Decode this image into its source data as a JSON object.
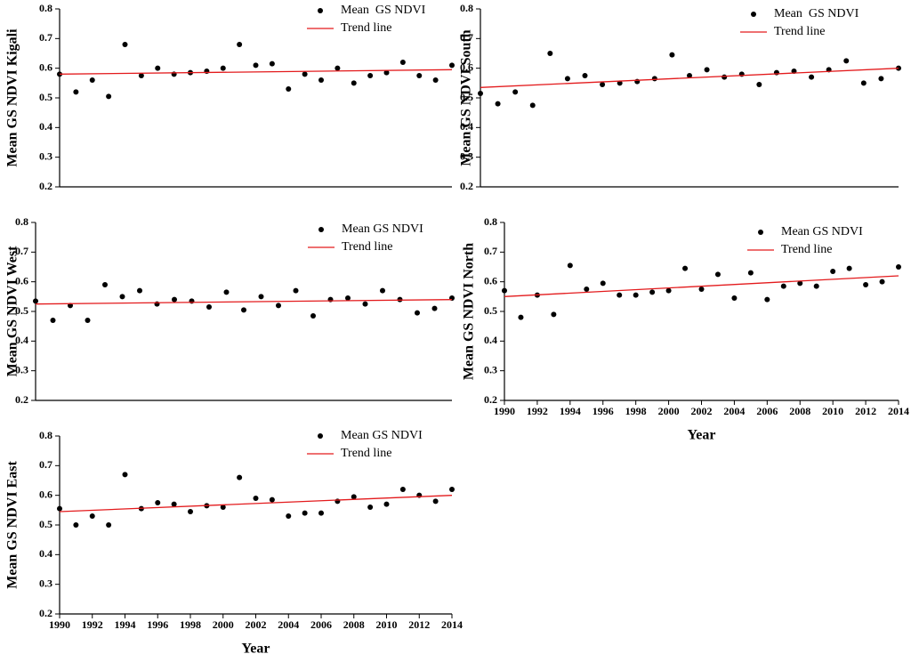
{
  "chart_data": [
    {
      "type": "scatter",
      "y_label": "Mean GS NDVI Kigali",
      "x": [
        1990,
        1991,
        1992,
        1993,
        1994,
        1995,
        1996,
        1997,
        1998,
        1999,
        2000,
        2001,
        2002,
        2003,
        2004,
        2005,
        2006,
        2007,
        2008,
        2009,
        2010,
        2011,
        2012,
        2013,
        2014
      ],
      "xlim": [
        1990,
        2014
      ],
      "ylim": [
        0.2,
        0.8
      ],
      "yticks": [
        0.2,
        0.3,
        0.4,
        0.5,
        0.6,
        0.7,
        0.8
      ],
      "series": [
        {
          "name": "Mean  GS NDVI",
          "color": "#000000",
          "values": [
            0.58,
            0.52,
            0.56,
            0.505,
            0.68,
            0.575,
            0.6,
            0.58,
            0.585,
            0.59,
            0.6,
            0.68,
            0.61,
            0.615,
            0.53,
            0.58,
            0.56,
            0.6,
            0.55,
            0.575,
            0.585,
            0.62,
            0.575,
            0.56,
            0.61
          ]
        },
        {
          "name": "Trend line",
          "color": "#e31a1c",
          "x": [
            1990,
            2014
          ],
          "values": [
            0.58,
            0.595
          ]
        }
      ]
    },
    {
      "type": "scatter",
      "y_label": "Mean GS NDVI South",
      "x": [
        1990,
        1991,
        1992,
        1993,
        1994,
        1995,
        1996,
        1997,
        1998,
        1999,
        2000,
        2001,
        2002,
        2003,
        2004,
        2005,
        2006,
        2007,
        2008,
        2009,
        2010,
        2011,
        2012,
        2013,
        2014
      ],
      "xlim": [
        1990,
        2014
      ],
      "ylim": [
        0.2,
        0.8
      ],
      "yticks": [
        0.2,
        0.3,
        0.4,
        0.5,
        0.6,
        0.7,
        0.8
      ],
      "series": [
        {
          "name": "Mean  GS NDVI",
          "color": "#000000",
          "values": [
            0.515,
            0.48,
            0.52,
            0.475,
            0.65,
            0.565,
            0.575,
            0.545,
            0.55,
            0.555,
            0.565,
            0.645,
            0.575,
            0.595,
            0.57,
            0.58,
            0.545,
            0.585,
            0.59,
            0.57,
            0.595,
            0.625,
            0.55,
            0.565,
            0.6
          ]
        },
        {
          "name": "Trend line",
          "color": "#e31a1c",
          "x": [
            1990,
            2014
          ],
          "values": [
            0.535,
            0.6
          ]
        }
      ]
    },
    {
      "type": "scatter",
      "y_label": "Mean GS NDVI West",
      "x": [
        1990,
        1991,
        1992,
        1993,
        1994,
        1995,
        1996,
        1997,
        1998,
        1999,
        2000,
        2001,
        2002,
        2003,
        2004,
        2005,
        2006,
        2007,
        2008,
        2009,
        2010,
        2011,
        2012,
        2013,
        2014
      ],
      "xlim": [
        1990,
        2014
      ],
      "ylim": [
        0.2,
        0.8
      ],
      "yticks": [
        0.2,
        0.3,
        0.4,
        0.5,
        0.6,
        0.7,
        0.8
      ],
      "series": [
        {
          "name": "Mean GS NDVI",
          "color": "#000000",
          "values": [
            0.535,
            0.47,
            0.52,
            0.47,
            0.59,
            0.55,
            0.57,
            0.525,
            0.54,
            0.535,
            0.515,
            0.565,
            0.505,
            0.55,
            0.52,
            0.57,
            0.485,
            0.54,
            0.545,
            0.525,
            0.57,
            0.54,
            0.495,
            0.51,
            0.545
          ]
        },
        {
          "name": "Trend line",
          "color": "#e31a1c",
          "x": [
            1990,
            2014
          ],
          "values": [
            0.525,
            0.54
          ]
        }
      ]
    },
    {
      "type": "scatter",
      "y_label": "Mean GS NDVI North",
      "x_label": "Year",
      "x": [
        1990,
        1991,
        1992,
        1993,
        1994,
        1995,
        1996,
        1997,
        1998,
        1999,
        2000,
        2001,
        2002,
        2003,
        2004,
        2005,
        2006,
        2007,
        2008,
        2009,
        2010,
        2011,
        2012,
        2013,
        2014
      ],
      "xlim": [
        1990,
        2014
      ],
      "xticks": [
        1990,
        1992,
        1994,
        1996,
        1998,
        2000,
        2002,
        2004,
        2006,
        2008,
        2010,
        2012,
        2014
      ],
      "ylim": [
        0.2,
        0.8
      ],
      "yticks": [
        0.2,
        0.3,
        0.4,
        0.5,
        0.6,
        0.7,
        0.8
      ],
      "series": [
        {
          "name": "Mean GS NDVI",
          "color": "#000000",
          "values": [
            0.57,
            0.48,
            0.555,
            0.49,
            0.655,
            0.575,
            0.595,
            0.555,
            0.555,
            0.565,
            0.57,
            0.645,
            0.575,
            0.625,
            0.545,
            0.63,
            0.54,
            0.585,
            0.595,
            0.585,
            0.635,
            0.645,
            0.59,
            0.6,
            0.65
          ]
        },
        {
          "name": "Trend line",
          "color": "#e31a1c",
          "x": [
            1990,
            2014
          ],
          "values": [
            0.55,
            0.62
          ]
        }
      ]
    },
    {
      "type": "scatter",
      "y_label": "Mean GS NDVI East",
      "x_label": "Year",
      "x": [
        1990,
        1991,
        1992,
        1993,
        1994,
        1995,
        1996,
        1997,
        1998,
        1999,
        2000,
        2001,
        2002,
        2003,
        2004,
        2005,
        2006,
        2007,
        2008,
        2009,
        2010,
        2011,
        2012,
        2013,
        2014
      ],
      "xlim": [
        1990,
        2014
      ],
      "xticks": [
        1990,
        1992,
        1994,
        1996,
        1998,
        2000,
        2002,
        2004,
        2006,
        2008,
        2010,
        2012,
        2014
      ],
      "ylim": [
        0.2,
        0.8
      ],
      "yticks": [
        0.2,
        0.3,
        0.4,
        0.5,
        0.6,
        0.7,
        0.8
      ],
      "series": [
        {
          "name": "Mean GS NDVI",
          "color": "#000000",
          "values": [
            0.555,
            0.5,
            0.53,
            0.5,
            0.67,
            0.555,
            0.575,
            0.57,
            0.545,
            0.565,
            0.56,
            0.66,
            0.59,
            0.585,
            0.53,
            0.54,
            0.54,
            0.58,
            0.595,
            0.56,
            0.57,
            0.62,
            0.6,
            0.58,
            0.62
          ]
        },
        {
          "name": "Trend line",
          "color": "#e31a1c",
          "x": [
            1990,
            2014
          ],
          "values": [
            0.545,
            0.6
          ]
        }
      ]
    }
  ]
}
